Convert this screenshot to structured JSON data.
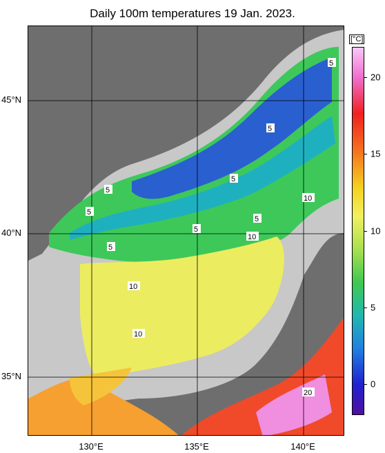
{
  "title": "Daily 100m temperatures 19 Jan. 2023.",
  "map": {
    "latitude_labels": [
      "45°N",
      "40°N",
      "35°N"
    ],
    "longitude_labels": [
      "130°E",
      "135°E",
      "140°E"
    ],
    "contour_labels": [
      "5",
      "5",
      "5",
      "5",
      "5",
      "5",
      "5",
      "5",
      "10",
      "10",
      "10",
      "10",
      "20"
    ],
    "colors": {
      "land": "#6e6e6e",
      "shelf": "#c8c8c8",
      "cold": "#2a5fcf",
      "cool": "#1fb0c0",
      "mid": "#3ec85a",
      "warm": "#ecec60",
      "warmer": "#f5c43a",
      "hot": "#f04a2a",
      "hottest": "#f08ee0"
    }
  },
  "colorbar": {
    "unit": "[°C]",
    "ticks": [
      "20",
      "15",
      "10",
      "5",
      "0"
    ],
    "min": -2,
    "max": 22
  }
}
